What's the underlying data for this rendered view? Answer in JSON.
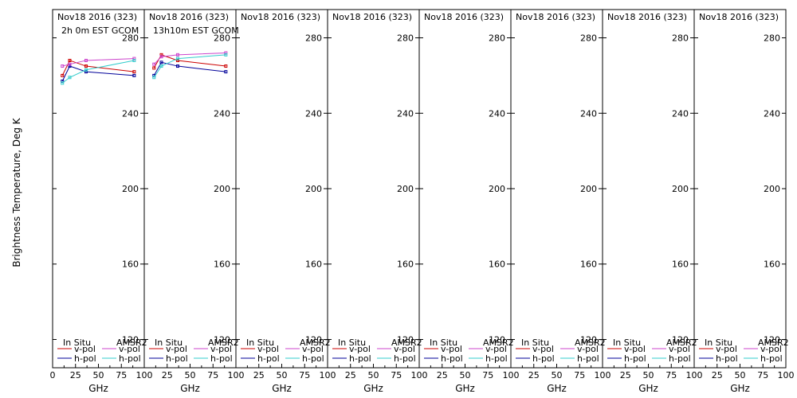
{
  "chart_data": {
    "type": "line",
    "ylabel": "Brightness Temperature, Deg K",
    "xlabel": "GHz",
    "xlim": [
      0,
      100
    ],
    "ylim": [
      105,
      295
    ],
    "x_ticks": [
      0,
      25,
      50,
      75,
      100
    ],
    "x_tick_labels": [
      "0",
      "25",
      "50",
      "75",
      "100"
    ],
    "y_ticks": [
      120,
      160,
      200,
      240,
      280
    ],
    "y_tick_labels": [
      "120",
      "160",
      "200",
      "240",
      "280"
    ],
    "legend": {
      "placement": "bottom",
      "headers": [
        "In Situ",
        "AMSR2"
      ],
      "labels": [
        "v-pol",
        "h-pol",
        "v-pol",
        "h-pol"
      ]
    },
    "colors": {
      "insitu_vpol": "#cc0000",
      "insitu_hpol": "#000099",
      "amsr2_vpol": "#cc44cc",
      "amsr2_hpol": "#33cccc"
    },
    "panels": [
      {
        "title": "Nov18 2016 (323)",
        "subtitle": "2h 0m EST GCOM",
        "x": [
          10.65,
          18.7,
          36.5,
          89
        ],
        "series": [
          {
            "name": "In Situ v-pol",
            "color": "#cc0000",
            "values": [
              260,
              268,
              265,
              262
            ]
          },
          {
            "name": "In Situ h-pol",
            "color": "#000099",
            "values": [
              257,
              265,
              262,
              260
            ]
          },
          {
            "name": "AMSR2 v-pol",
            "color": "#cc44cc",
            "values": [
              265,
              266,
              268,
              269
            ]
          },
          {
            "name": "AMSR2 h-pol",
            "color": "#33cccc",
            "values": [
              256,
              259,
              263,
              268
            ]
          }
        ]
      },
      {
        "title": "Nov18 2016 (323)",
        "subtitle": "13h10m EST GCOM",
        "x": [
          10.65,
          18.7,
          36.5,
          89
        ],
        "series": [
          {
            "name": "In Situ v-pol",
            "color": "#cc0000",
            "values": [
              264,
              271,
              268,
              265
            ]
          },
          {
            "name": "In Situ h-pol",
            "color": "#000099",
            "values": [
              260,
              267,
              265,
              262
            ]
          },
          {
            "name": "AMSR2 v-pol",
            "color": "#cc44cc",
            "values": [
              266,
              270,
              271,
              272
            ]
          },
          {
            "name": "AMSR2 h-pol",
            "color": "#33cccc",
            "values": [
              259,
              265,
              269,
              271
            ]
          }
        ]
      },
      {
        "title": "Nov18 2016 (323)",
        "subtitle": "",
        "x": [],
        "series": []
      },
      {
        "title": "Nov18 2016 (323)",
        "subtitle": "",
        "x": [],
        "series": []
      },
      {
        "title": "Nov18 2016 (323)",
        "subtitle": "",
        "x": [],
        "series": []
      },
      {
        "title": "Nov18 2016 (323)",
        "subtitle": "",
        "x": [],
        "series": []
      },
      {
        "title": "Nov18 2016 (323)",
        "subtitle": "",
        "x": [],
        "series": []
      },
      {
        "title": "Nov18 2016 (323)",
        "subtitle": "",
        "x": [],
        "series": []
      }
    ]
  }
}
